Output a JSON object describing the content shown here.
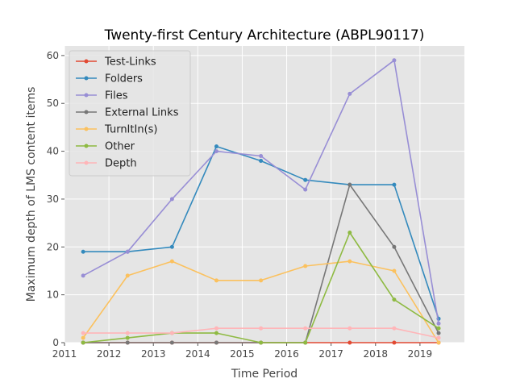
{
  "chart_data": {
    "type": "line",
    "title": "Twenty-first Century Architecture (ABPL90117)",
    "xlabel": "Time Period",
    "ylabel": "Maximum depth of LMS content items",
    "xlim": [
      2011,
      2020
    ],
    "ylim": [
      0,
      62
    ],
    "xticks": [
      2011,
      2012,
      2013,
      2014,
      2015,
      2016,
      2017,
      2018,
      2019
    ],
    "yticks": [
      0,
      10,
      20,
      30,
      40,
      50,
      60
    ],
    "grid": true,
    "legend_position": "top-left",
    "x": [
      2011.42,
      2012.42,
      2013.42,
      2014.42,
      2015.42,
      2016.42,
      2017.42,
      2018.42,
      2019.42
    ],
    "series": [
      {
        "name": "Test-Links",
        "color": "#e24a33",
        "values": [
          0,
          0,
          0,
          0,
          0,
          0,
          0,
          0,
          0
        ]
      },
      {
        "name": "Folders",
        "color": "#348abd",
        "values": [
          19,
          19,
          20,
          41,
          38,
          34,
          33,
          33,
          5
        ]
      },
      {
        "name": "Files",
        "color": "#988ed5",
        "values": [
          14,
          19,
          30,
          40,
          39,
          32,
          52,
          59,
          4
        ]
      },
      {
        "name": "External Links",
        "color": "#777777",
        "values": [
          0,
          0,
          0,
          0,
          0,
          0,
          33,
          20,
          2
        ]
      },
      {
        "name": "TurnItIn(s)",
        "color": "#fbc15e",
        "values": [
          1,
          14,
          17,
          13,
          13,
          16,
          17,
          15,
          0
        ]
      },
      {
        "name": "Other",
        "color": "#8eba42",
        "values": [
          0,
          1,
          2,
          2,
          0,
          0,
          23,
          9,
          3
        ]
      },
      {
        "name": "Depth",
        "color": "#ffb5b8",
        "values": [
          2,
          2,
          2,
          3,
          3,
          3,
          3,
          3,
          1
        ]
      }
    ]
  }
}
